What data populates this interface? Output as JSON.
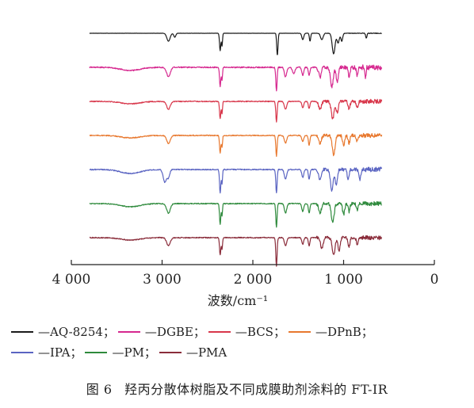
{
  "chart_data": {
    "type": "line",
    "xlabel": "波数/cm⁻¹",
    "ylabel": "",
    "xlim": [
      4000,
      0
    ],
    "x_ticks": [
      "4 000",
      "3 000",
      "2 000",
      "1 000",
      "0"
    ],
    "x_tick_values": [
      4000,
      3000,
      2000,
      1000,
      0
    ],
    "grid": false,
    "legend_position": "bottom",
    "series": [
      {
        "name": "AQ-8254",
        "color": "#1a1a1a",
        "offset": 0,
        "noise": 0.2,
        "base": 0,
        "peaks": [
          [
            2930,
            10,
            25
          ],
          [
            2860,
            5,
            15
          ],
          [
            2360,
            22,
            10
          ],
          [
            2340,
            16,
            8
          ],
          [
            1730,
            28,
            10
          ],
          [
            1450,
            8,
            15
          ],
          [
            1370,
            10,
            10
          ],
          [
            1240,
            8,
            20
          ],
          [
            1110,
            26,
            22
          ],
          [
            1060,
            12,
            18
          ],
          [
            1020,
            10,
            14
          ],
          [
            750,
            6,
            10
          ]
        ]
      },
      {
        "name": "DGBE",
        "color": "#d6288f",
        "offset": 1,
        "noise": 1.5,
        "base": 0,
        "peaks": [
          [
            3350,
            4,
            150
          ],
          [
            2930,
            12,
            28
          ],
          [
            2360,
            24,
            10
          ],
          [
            2340,
            16,
            8
          ],
          [
            1740,
            30,
            10
          ],
          [
            1640,
            12,
            18
          ],
          [
            1550,
            8,
            20
          ],
          [
            1450,
            10,
            15
          ],
          [
            1380,
            10,
            12
          ],
          [
            1260,
            12,
            20
          ],
          [
            1130,
            24,
            22
          ],
          [
            1070,
            18,
            18
          ],
          [
            940,
            12,
            14
          ],
          [
            850,
            10,
            14
          ],
          [
            760,
            12,
            10
          ]
        ]
      },
      {
        "name": "BCS",
        "color": "#d8364a",
        "offset": 2,
        "noise": 1.2,
        "base": 0,
        "peaks": [
          [
            3350,
            3,
            150
          ],
          [
            2930,
            10,
            28
          ],
          [
            2360,
            22,
            10
          ],
          [
            2340,
            15,
            8
          ],
          [
            1740,
            26,
            10
          ],
          [
            1640,
            10,
            18
          ],
          [
            1450,
            8,
            15
          ],
          [
            1380,
            9,
            12
          ],
          [
            1260,
            10,
            20
          ],
          [
            1120,
            22,
            22
          ],
          [
            1070,
            14,
            18
          ],
          [
            940,
            10,
            14
          ],
          [
            850,
            8,
            14
          ]
        ]
      },
      {
        "name": "DPnB",
        "color": "#e8782e",
        "offset": 3,
        "noise": 1.2,
        "base": 0,
        "peaks": [
          [
            3350,
            3,
            150
          ],
          [
            2930,
            10,
            28
          ],
          [
            2360,
            22,
            10
          ],
          [
            2340,
            15,
            8
          ],
          [
            1740,
            26,
            10
          ],
          [
            1640,
            10,
            18
          ],
          [
            1450,
            8,
            15
          ],
          [
            1380,
            12,
            12
          ],
          [
            1260,
            10,
            20
          ],
          [
            1110,
            24,
            22
          ],
          [
            1000,
            12,
            16
          ],
          [
            940,
            10,
            14
          ],
          [
            850,
            8,
            14
          ]
        ]
      },
      {
        "name": "IPA",
        "color": "#5a64c2",
        "offset": 4,
        "noise": 1.3,
        "base": 0,
        "peaks": [
          [
            3350,
            5,
            150
          ],
          [
            2970,
            16,
            25
          ],
          [
            2930,
            10,
            20
          ],
          [
            2360,
            30,
            10
          ],
          [
            2340,
            18,
            8
          ],
          [
            1740,
            30,
            10
          ],
          [
            1640,
            12,
            18
          ],
          [
            1450,
            10,
            15
          ],
          [
            1380,
            12,
            12
          ],
          [
            1260,
            14,
            20
          ],
          [
            1130,
            26,
            22
          ],
          [
            1080,
            20,
            16
          ],
          [
            950,
            14,
            14
          ],
          [
            820,
            12,
            14
          ]
        ]
      },
      {
        "name": "PM",
        "color": "#2e8a3c",
        "offset": 5,
        "noise": 1.2,
        "base": 0,
        "peaks": [
          [
            3350,
            4,
            150
          ],
          [
            2930,
            12,
            28
          ],
          [
            2360,
            26,
            10
          ],
          [
            2340,
            15,
            8
          ],
          [
            1740,
            30,
            10
          ],
          [
            1640,
            12,
            18
          ],
          [
            1450,
            10,
            15
          ],
          [
            1380,
            12,
            12
          ],
          [
            1260,
            12,
            20
          ],
          [
            1120,
            24,
            22
          ],
          [
            1000,
            14,
            16
          ],
          [
            940,
            10,
            14
          ],
          [
            850,
            8,
            14
          ]
        ]
      },
      {
        "name": "PMA",
        "color": "#8a2c3a",
        "offset": 6,
        "noise": 1.2,
        "base": 0,
        "peaks": [
          [
            3350,
            3,
            150
          ],
          [
            2930,
            10,
            28
          ],
          [
            2360,
            22,
            10
          ],
          [
            2340,
            15,
            8
          ],
          [
            1740,
            36,
            10
          ],
          [
            1640,
            10,
            18
          ],
          [
            1450,
            8,
            15
          ],
          [
            1380,
            10,
            12
          ],
          [
            1240,
            14,
            20
          ],
          [
            1110,
            22,
            22
          ],
          [
            1050,
            18,
            16
          ],
          [
            940,
            12,
            14
          ],
          [
            850,
            8,
            14
          ]
        ]
      }
    ]
  },
  "legend": [
    {
      "dash": "—",
      "label": "AQ-8254；"
    },
    {
      "dash": "—",
      "label": "DGBE；"
    },
    {
      "dash": "—",
      "label": "BCS；"
    },
    {
      "dash": "—",
      "label": "DPnB；"
    },
    {
      "dash": "—",
      "label": "IPA；"
    },
    {
      "dash": "—",
      "label": "PM；"
    },
    {
      "dash": "—",
      "label": "PMA"
    }
  ],
  "caption": {
    "number": "图 6",
    "text": "羟丙分散体树脂及不同成膜助剂涂料的 FT-IR"
  }
}
